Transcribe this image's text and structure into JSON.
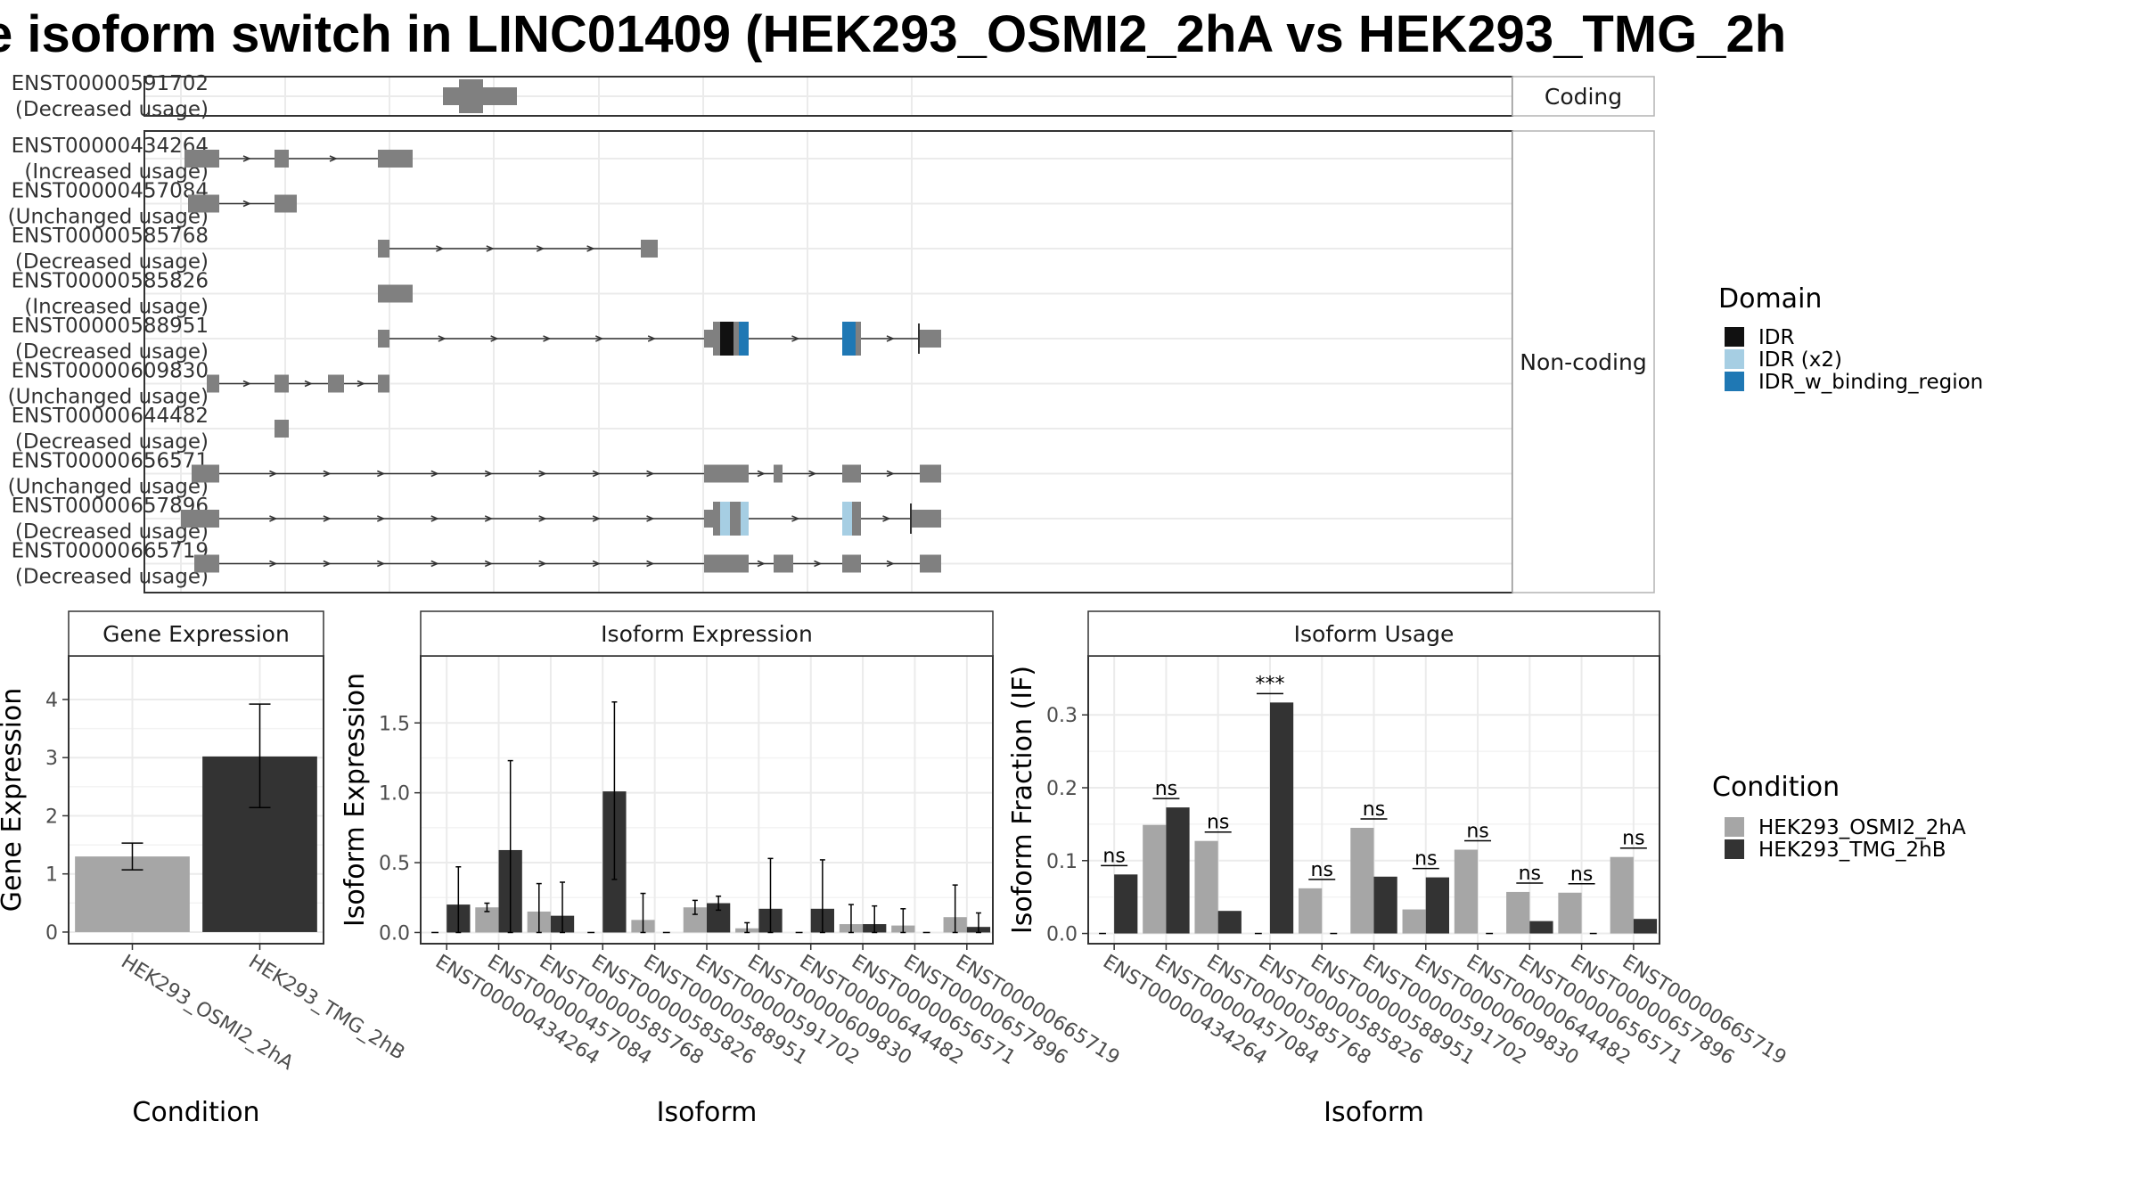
{
  "title": "e isoform switch in LINC01409 (HEK293_OSMI2_2hA vs HEK293_TMG_2h",
  "colors": {
    "exon": "#808080",
    "intron": "#333333",
    "IDR": "#111111",
    "IDR_x2": "#a6cee3",
    "IDR_w_binding_region": "#1f78b4",
    "cond1": "#a6a6a6",
    "cond2": "#333333",
    "panel_border": "#333333",
    "strip_border": "#b3b3b3",
    "grid": "#ebebeb"
  },
  "structure": {
    "groups": [
      {
        "label": "Coding",
        "transcripts": [
          {
            "id": "ENST00000591702",
            "usage": "(Decreased usage)",
            "exons": [
              [
                497,
                580
              ]
            ],
            "tall": [
              [
                515,
                542
              ]
            ],
            "domains": []
          }
        ]
      },
      {
        "label": "Non-coding",
        "transcripts": [
          {
            "id": "ENST00000434264",
            "usage": "(Increased usage)",
            "exons": [
              [
                207,
                246
              ],
              [
                308,
                324
              ],
              [
                424,
                463
              ]
            ],
            "tall": [],
            "domains": []
          },
          {
            "id": "ENST00000457084",
            "usage": "(Unchanged usage)",
            "exons": [
              [
                211,
                246
              ],
              [
                308,
                333
              ]
            ],
            "tall": [],
            "domains": []
          },
          {
            "id": "ENST00000585768",
            "usage": "(Decreased usage)",
            "exons": [
              [
                424,
                437
              ],
              [
                719,
                738
              ]
            ],
            "tall": [],
            "domains": []
          },
          {
            "id": "ENST00000585826",
            "usage": "(Increased usage)",
            "exons": [
              [
                424,
                463
              ]
            ],
            "tall": [],
            "domains": []
          },
          {
            "id": "ENST00000588951",
            "usage": "(Decreased usage)",
            "exons": [
              [
                424,
                437
              ],
              [
                790,
                840
              ],
              [
                945,
                966
              ],
              [
                1032,
                1056
              ]
            ],
            "tall": [
              [
                800,
                840
              ],
              [
                945,
                966
              ]
            ],
            "domains": [
              {
                "type": "IDR",
                "range": [
                  808,
                  823
                ]
              },
              {
                "type": "IDR_w_binding_region",
                "range": [
                  829,
                  840
                ]
              },
              {
                "type": "IDR_w_binding_region",
                "range": [
                  945,
                  960
                ]
              }
            ]
          },
          {
            "id": "ENST00000609830",
            "usage": "(Unchanged usage)",
            "exons": [
              [
                232,
                246
              ],
              [
                308,
                324
              ],
              [
                368,
                386
              ],
              [
                424,
                437
              ]
            ],
            "tall": [],
            "domains": []
          },
          {
            "id": "ENST00000644482",
            "usage": "(Decreased usage)",
            "exons": [
              [
                308,
                324
              ]
            ],
            "tall": [],
            "domains": []
          },
          {
            "id": "ENST00000656571",
            "usage": "(Unchanged usage)",
            "exons": [
              [
                215,
                246
              ],
              [
                790,
                840
              ],
              [
                868,
                878
              ],
              [
                945,
                966
              ],
              [
                1032,
                1056
              ]
            ],
            "tall": [],
            "domains": []
          },
          {
            "id": "ENST00000657896",
            "usage": "(Decreased usage)",
            "exons": [
              [
                203,
                246
              ],
              [
                790,
                840
              ],
              [
                945,
                966
              ],
              [
                1023,
                1056
              ]
            ],
            "tall": [
              [
                800,
                840
              ],
              [
                945,
                966
              ]
            ],
            "domains": [
              {
                "type": "IDR_x2",
                "range": [
                  808,
                  819
                ]
              },
              {
                "type": "IDR_x2",
                "range": [
                  831,
                  840
                ]
              },
              {
                "type": "IDR_x2",
                "range": [
                  945,
                  956
                ]
              }
            ]
          },
          {
            "id": "ENST00000665719",
            "usage": "(Decreased usage)",
            "exons": [
              [
                218,
                246
              ],
              [
                790,
                840
              ],
              [
                868,
                890
              ],
              [
                945,
                966
              ],
              [
                1032,
                1056
              ]
            ],
            "tall": [],
            "domains": []
          }
        ]
      }
    ]
  },
  "legend_domain": {
    "title": "Domain",
    "items": [
      {
        "label": "IDR",
        "color": "#111111"
      },
      {
        "label": "IDR (x2)",
        "color": "#a6cee3"
      },
      {
        "label": "IDR_w_binding_region",
        "color": "#1f78b4"
      }
    ]
  },
  "legend_condition": {
    "title": "Condition",
    "items": [
      {
        "label": "HEK293_OSMI2_2hA",
        "color": "#a6a6a6"
      },
      {
        "label": "HEK293_TMG_2hB",
        "color": "#333333"
      }
    ]
  },
  "chart_data": [
    {
      "type": "bar",
      "title": "Gene Expression",
      "xlabel": "Condition",
      "ylabel": "Gene Expression",
      "categories": [
        "HEK293_OSMI2_2hA",
        "HEK293_TMG_2hB"
      ],
      "values": [
        1.3,
        3.02
      ],
      "error": [
        [
          1.07,
          1.53
        ],
        [
          2.14,
          3.92
        ]
      ],
      "ylim": [
        -0.2,
        4.75
      ],
      "yticks": [
        0,
        1,
        2,
        3,
        4
      ]
    },
    {
      "type": "bar",
      "title": "Isoform Expression",
      "xlabel": "Isoform",
      "ylabel": "Isoform Expression",
      "categories": [
        "ENST00000434264",
        "ENST00000457084",
        "ENST00000585768",
        "ENST00000585826",
        "ENST00000588951",
        "ENST00000591702",
        "ENST00000609830",
        "ENST00000644482",
        "ENST00000656571",
        "ENST00000657896",
        "ENST00000665719"
      ],
      "series": [
        {
          "name": "HEK293_OSMI2_2hA",
          "values": [
            0,
            0.18,
            0.15,
            0,
            0.09,
            0.18,
            0.03,
            0,
            0.06,
            0.05,
            0.11
          ],
          "error": [
            null,
            [
              0.15,
              0.21
            ],
            [
              0,
              0.35
            ],
            null,
            [
              0,
              0.28
            ],
            [
              0.13,
              0.23
            ],
            [
              0,
              0.07
            ],
            null,
            [
              0,
              0.2
            ],
            [
              0,
              0.17
            ],
            [
              0,
              0.34
            ]
          ]
        },
        {
          "name": "HEK293_TMG_2hB",
          "values": [
            0.2,
            0.59,
            0.12,
            1.01,
            0,
            0.21,
            0.17,
            0.17,
            0.06,
            0,
            0.04
          ],
          "error": [
            [
              0,
              0.47
            ],
            [
              0,
              1.23
            ],
            [
              0,
              0.36
            ],
            [
              0.38,
              1.65
            ],
            null,
            [
              0.16,
              0.26
            ],
            [
              0,
              0.53
            ],
            [
              0,
              0.52
            ],
            [
              0,
              0.19
            ],
            null,
            [
              0,
              0.14
            ]
          ]
        }
      ],
      "ylim": [
        -0.08,
        1.98
      ],
      "yticks": [
        0.0,
        0.5,
        1.0,
        1.5
      ]
    },
    {
      "type": "bar",
      "title": "Isoform Usage",
      "xlabel": "Isoform",
      "ylabel": "Isoform Fraction (IF)",
      "categories": [
        "ENST00000434264",
        "ENST00000457084",
        "ENST00000585768",
        "ENST00000585826",
        "ENST00000588951",
        "ENST00000591702",
        "ENST00000609830",
        "ENST00000644482",
        "ENST00000656571",
        "ENST00000657896",
        "ENST00000665719"
      ],
      "series": [
        {
          "name": "HEK293_OSMI2_2hA",
          "values": [
            0,
            0.149,
            0.127,
            0,
            0.062,
            0.145,
            0.033,
            0.115,
            0.057,
            0.056,
            0.105
          ]
        },
        {
          "name": "HEK293_TMG_2hB",
          "values": [
            0.081,
            0.173,
            0.031,
            0.317,
            0,
            0.078,
            0.077,
            0,
            0.017,
            0,
            0.02
          ]
        }
      ],
      "significance": [
        "ns",
        "ns",
        "ns",
        "***",
        "ns",
        "ns",
        "ns",
        "ns",
        "ns",
        "ns",
        "ns"
      ],
      "ylim": [
        -0.014,
        0.381
      ],
      "yticks": [
        0.0,
        0.1,
        0.2,
        0.3
      ]
    }
  ]
}
